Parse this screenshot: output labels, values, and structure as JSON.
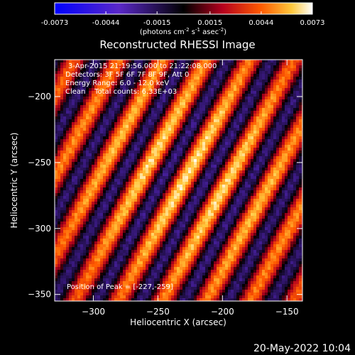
{
  "colorbar": {
    "ticks": [
      "-0.0073",
      "-0.0044",
      "-0.0015",
      "0.0015",
      "0.0044",
      "0.0073"
    ],
    "unit_parts": [
      "(photons cm",
      "-2",
      " s",
      "-1",
      " asec",
      "-2",
      ")"
    ],
    "range": [
      -0.0073,
      0.0073
    ]
  },
  "chart_data": {
    "type": "heatmap",
    "title": "Reconstructed RHESSI Image",
    "xlabel": "Heliocentric X (arcsec)",
    "ylabel": "Heliocentric Y (arcsec)",
    "xlim": [
      -330,
      -138
    ],
    "ylim": [
      -355,
      -172
    ],
    "x_ticks": [
      -300,
      -250,
      -200,
      -150
    ],
    "y_ticks": [
      -200,
      -250,
      -300,
      -350
    ],
    "x_tick_labels": [
      "−300",
      "−250",
      "−200",
      "−150"
    ],
    "y_tick_labels": [
      "−200",
      "−250",
      "−300",
      "−350"
    ],
    "peak_position": [
      -227,
      -259
    ],
    "info_lines": [
      "3-Apr-2015 21:19:56.000 to 21:22:08.000",
      "Detectors: 3F 5F 6F 7F 8F 9F, Att 0",
      "Energy Range: 6.0 - 12.0 keV",
      "Clean    Total counts: 6.33E+03"
    ],
    "peak_label": "Position of Peak = [-227,-259]",
    "colormap": "rhessi-blue-black-red-yellow-white"
  },
  "footer": {
    "date": "20-May-2022 10:04"
  }
}
